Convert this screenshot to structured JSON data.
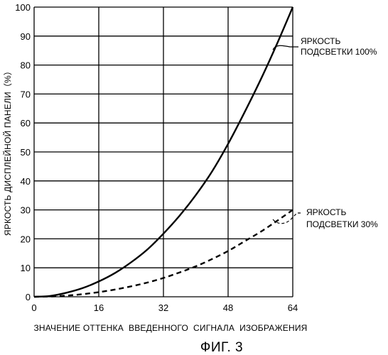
{
  "chart_data": {
    "type": "line",
    "title": "",
    "xlabel": "ЗНАЧЕНИЕ ОТТЕНКА  ВВЕДЕННОГО  СИГНАЛА  ИЗОБРАЖЕНИЯ",
    "ylabel": "ЯРКОСТЬ ДИСПЛЕЙНОЙ ПАНЕЛИ（%）",
    "xlim": [
      0,
      64
    ],
    "ylim": [
      0,
      100
    ],
    "xticks": [
      0,
      16,
      32,
      48,
      64
    ],
    "yticks": [
      0,
      10,
      20,
      30,
      40,
      50,
      60,
      70,
      80,
      90,
      100
    ],
    "x_tick_labels": [
      "0",
      "16",
      "32",
      "48",
      "64"
    ],
    "y_tick_labels": [
      "0",
      "10",
      "20",
      "30",
      "40",
      "50",
      "60",
      "70",
      "80",
      "90",
      "100"
    ],
    "grid": true,
    "legend_placement": "annotations at right",
    "series": [
      {
        "name": "ЯРКОСТЬ ПОДСВЕТКИ 100%",
        "style": "solid",
        "x": [
          0,
          4,
          8,
          12,
          16,
          20,
          24,
          28,
          32,
          36,
          40,
          44,
          48,
          52,
          56,
          60,
          64
        ],
        "y": [
          0,
          0.3,
          1.4,
          3.0,
          5.3,
          8.2,
          11.9,
          16.3,
          21.8,
          28.0,
          35.1,
          43.2,
          52.8,
          63.5,
          74.8,
          87.0,
          100
        ]
      },
      {
        "name": "ЯРКОСТЬ ПОДСВЕТКИ 30%",
        "style": "dashed",
        "x": [
          0,
          4,
          8,
          12,
          16,
          20,
          24,
          28,
          32,
          36,
          40,
          44,
          48,
          52,
          56,
          60,
          64
        ],
        "y": [
          0,
          0.1,
          0.4,
          0.9,
          1.6,
          2.5,
          3.6,
          4.9,
          6.5,
          8.4,
          10.5,
          13.0,
          15.8,
          19.1,
          22.4,
          26.1,
          30
        ]
      }
    ],
    "annotations": [
      {
        "lines": [
          "ЯРКОСТЬ",
          "ПОДСВЕТКИ 100%"
        ]
      },
      {
        "lines": [
          "ЯРКОСТЬ",
          "ПОДСВЕТКИ 30%"
        ]
      }
    ]
  },
  "figure_label": "ФИГ. 3"
}
